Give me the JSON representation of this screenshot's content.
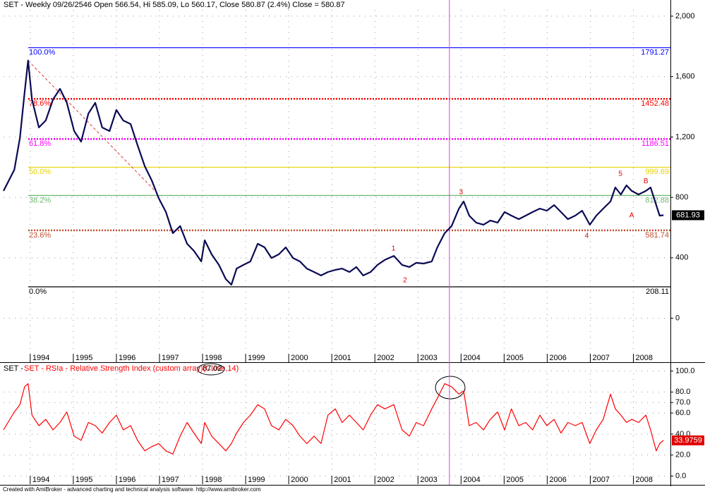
{
  "header": "SET - Weekly 09/26/2546 Open 566.54, Hi 585.09, Lo 560.17, Close 580.87 (2.4%) Close = 580.87",
  "footer": "Created with AmiBroker - advanced charting and technical analysis software. http://www.amibroker.com",
  "chart_data": [
    {
      "type": "line",
      "series_name": "SET",
      "color": "#0a0a55",
      "xlim": [
        1993.38,
        2008.86
      ],
      "xticks": [
        1994,
        1995,
        1996,
        1997,
        1998,
        1999,
        2000,
        2001,
        2002,
        2003,
        2004,
        2005,
        2006,
        2007,
        2008
      ],
      "ylim": [
        -240,
        2107
      ],
      "yticks": [
        {
          "value": 0,
          "label": "0"
        },
        {
          "value": 400,
          "label": "400"
        },
        {
          "value": 800,
          "label": "800"
        },
        {
          "value": 1200,
          "label": "1,200"
        },
        {
          "value": 1600,
          "label": "1,600"
        },
        {
          "value": 2000,
          "label": "2,000"
        }
      ],
      "grid": true,
      "cursor_x": 2003.73,
      "x": [
        1993.38,
        1993.63,
        1993.76,
        1993.87,
        1993.95,
        1994.04,
        1994.2,
        1994.36,
        1994.53,
        1994.69,
        1994.85,
        1995.02,
        1995.18,
        1995.35,
        1995.51,
        1995.67,
        1995.84,
        1996.0,
        1996.16,
        1996.33,
        1996.49,
        1996.66,
        1996.82,
        1996.98,
        1997.15,
        1997.31,
        1997.48,
        1997.64,
        1997.8,
        1997.97,
        1998.05,
        1998.21,
        1998.38,
        1998.54,
        1998.67,
        1998.79,
        1998.95,
        1999.11,
        1999.28,
        1999.44,
        1999.6,
        1999.77,
        1999.93,
        2000.1,
        2000.26,
        2000.42,
        2000.59,
        2000.75,
        2000.91,
        2001.08,
        2001.24,
        2001.41,
        2001.57,
        2001.73,
        2001.9,
        2002.06,
        2002.23,
        2002.44,
        2002.63,
        2002.8,
        2002.96,
        2003.13,
        2003.32,
        2003.45,
        2003.62,
        2003.78,
        2003.95,
        2004.06,
        2004.19,
        2004.35,
        2004.52,
        2004.68,
        2004.85,
        2005.01,
        2005.17,
        2005.34,
        2005.5,
        2005.66,
        2005.83,
        2005.99,
        2006.16,
        2006.32,
        2006.48,
        2006.65,
        2006.81,
        2006.99,
        2007.14,
        2007.3,
        2007.47,
        2007.58,
        2007.71,
        2007.84,
        2007.96,
        2008.12,
        2008.29,
        2008.4,
        2008.53,
        2008.61,
        2008.7
      ],
      "values": [
        843,
        983,
        1193,
        1496,
        1706,
        1449,
        1263,
        1309,
        1449,
        1519,
        1426,
        1239,
        1169,
        1356,
        1426,
        1263,
        1239,
        1379,
        1309,
        1286,
        1146,
        1006,
        913,
        796,
        703,
        563,
        610,
        493,
        446,
        376,
        516,
        423,
        353,
        259,
        222,
        329,
        353,
        376,
        493,
        469,
        399,
        423,
        469,
        399,
        376,
        329,
        306,
        283,
        306,
        320,
        329,
        306,
        339,
        283,
        306,
        353,
        386,
        413,
        353,
        339,
        367,
        362,
        376,
        469,
        563,
        610,
        726,
        773,
        679,
        633,
        619,
        647,
        633,
        703,
        679,
        656,
        679,
        703,
        726,
        712,
        749,
        703,
        656,
        679,
        712,
        619,
        679,
        726,
        773,
        866,
        819,
        880,
        843,
        819,
        843,
        866,
        749,
        679,
        681.93
      ],
      "fib_levels": [
        {
          "label": "100.0%",
          "value": 1791.27,
          "color": "#0000ff",
          "style": "solid"
        },
        {
          "label": "78.6%",
          "value": 1452.48,
          "color": "#ff0000",
          "style": "dotted"
        },
        {
          "label": "61.8%",
          "value": 1186.51,
          "color": "#ff00ff",
          "style": "dotted"
        },
        {
          "label": "50.0%",
          "value": 999.69,
          "color": "#e6d200",
          "style": "solid"
        },
        {
          "label": "38.2%",
          "value": 812.88,
          "color": "#70b870",
          "style": "solid"
        },
        {
          "label": "23.6%",
          "value": 581.74,
          "color": "#c05030",
          "style": "dotted"
        },
        {
          "label": "0.0%",
          "value": 208.11,
          "color": "#000000",
          "style": "solid"
        }
      ],
      "trendline": {
        "color": "#e04040",
        "x": [
          1993.95,
          1996.98
        ],
        "y": [
          1706,
          819
        ]
      },
      "annotations": [
        {
          "text": "1",
          "x": 2002.43,
          "y": 460
        },
        {
          "text": "2",
          "x": 2002.7,
          "y": 250
        },
        {
          "text": "3",
          "x": 2004.0,
          "y": 835
        },
        {
          "text": "4",
          "x": 2006.92,
          "y": 545
        },
        {
          "text": "5",
          "x": 2007.7,
          "y": 955
        },
        {
          "text": "A",
          "x": 2007.96,
          "y": 680
        },
        {
          "text": "B",
          "x": 2008.29,
          "y": 905
        }
      ]
    },
    {
      "type": "line",
      "title": "SET - RSIa - Relative Strength Index (custom array)(Close,14)",
      "color": "#ff0000",
      "cursor_value": 87.02,
      "xlim": [
        1993.38,
        2008.86
      ],
      "xticks": [
        1994,
        1995,
        1996,
        1997,
        1998,
        1999,
        2000,
        2001,
        2002,
        2003,
        2004,
        2005,
        2006,
        2007,
        2008
      ],
      "ylim": [
        -13,
        105
      ],
      "yticks": [
        {
          "value": 0,
          "label": "0.0"
        },
        {
          "value": 20,
          "label": "20.0"
        },
        {
          "value": 40,
          "label": "40.0"
        },
        {
          "value": 60,
          "label": "60.0"
        },
        {
          "value": 70,
          "label": "70.0"
        },
        {
          "value": 80,
          "label": "80.0"
        },
        {
          "value": 100,
          "label": "100.0"
        }
      ],
      "grid": true,
      "x": [
        1993.38,
        1993.63,
        1993.76,
        1993.87,
        1993.95,
        1994.04,
        1994.2,
        1994.36,
        1994.53,
        1994.69,
        1994.85,
        1995.02,
        1995.18,
        1995.35,
        1995.51,
        1995.67,
        1995.84,
        1996.0,
        1996.16,
        1996.33,
        1996.49,
        1996.66,
        1996.82,
        1996.98,
        1997.15,
        1997.31,
        1997.48,
        1997.64,
        1997.8,
        1997.97,
        1998.05,
        1998.21,
        1998.38,
        1998.54,
        1998.67,
        1998.79,
        1998.95,
        1999.11,
        1999.28,
        1999.44,
        1999.6,
        1999.77,
        1999.93,
        2000.1,
        2000.26,
        2000.42,
        2000.59,
        2000.75,
        2000.91,
        2001.08,
        2001.24,
        2001.41,
        2001.57,
        2001.73,
        2001.9,
        2002.06,
        2002.23,
        2002.44,
        2002.63,
        2002.8,
        2002.96,
        2003.13,
        2003.32,
        2003.45,
        2003.62,
        2003.78,
        2003.95,
        2004.06,
        2004.19,
        2004.35,
        2004.52,
        2004.68,
        2004.85,
        2005.01,
        2005.17,
        2005.34,
        2005.5,
        2005.66,
        2005.83,
        2005.99,
        2006.16,
        2006.32,
        2006.48,
        2006.65,
        2006.81,
        2006.99,
        2007.14,
        2007.3,
        2007.47,
        2007.58,
        2007.71,
        2007.84,
        2007.96,
        2008.12,
        2008.29,
        2008.4,
        2008.53,
        2008.61,
        2008.7
      ],
      "values": [
        44,
        61,
        68,
        85,
        88,
        58,
        48,
        54,
        44,
        51,
        61,
        38,
        34,
        51,
        48,
        41,
        51,
        58,
        44,
        48,
        34,
        24,
        28,
        31,
        24,
        21,
        38,
        51,
        41,
        31,
        51,
        38,
        31,
        24,
        31,
        41,
        51,
        58,
        68,
        64,
        48,
        44,
        54,
        48,
        38,
        31,
        38,
        31,
        58,
        64,
        51,
        58,
        51,
        44,
        58,
        68,
        64,
        68,
        44,
        38,
        51,
        48,
        64,
        74,
        88,
        85,
        78,
        81,
        48,
        51,
        44,
        54,
        61,
        44,
        64,
        48,
        51,
        44,
        58,
        48,
        54,
        41,
        51,
        48,
        51,
        31,
        44,
        54,
        78,
        64,
        58,
        51,
        54,
        51,
        58,
        44,
        24,
        31,
        33.9759
      ]
    }
  ]
}
